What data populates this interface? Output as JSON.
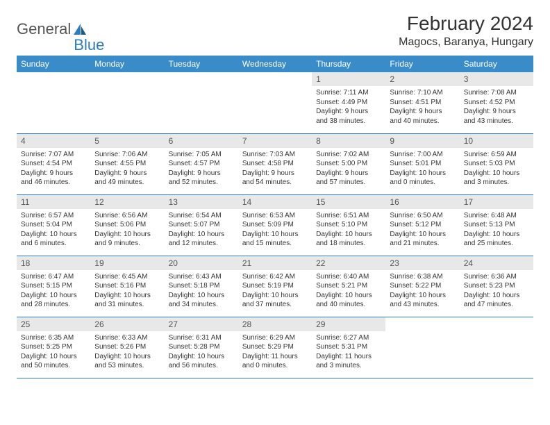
{
  "logo": {
    "word1": "General",
    "word2": "Blue"
  },
  "title": "February 2024",
  "location": "Magocs, Baranya, Hungary",
  "colors": {
    "header_bg": "#3a8cc9",
    "header_text": "#ffffff",
    "daynum_bg": "#e8e8e8",
    "border": "#2b7bbd",
    "text": "#333333",
    "logo_gray": "#555555",
    "logo_blue": "#2b7bbd"
  },
  "typography": {
    "title_fontsize": 28,
    "location_fontsize": 16,
    "header_fontsize": 12,
    "daynum_fontsize": 12,
    "body_fontsize": 10
  },
  "day_headers": [
    "Sunday",
    "Monday",
    "Tuesday",
    "Wednesday",
    "Thursday",
    "Friday",
    "Saturday"
  ],
  "weeks": [
    [
      {
        "n": "",
        "sr": "",
        "ss": "",
        "dl1": "",
        "dl2": ""
      },
      {
        "n": "",
        "sr": "",
        "ss": "",
        "dl1": "",
        "dl2": ""
      },
      {
        "n": "",
        "sr": "",
        "ss": "",
        "dl1": "",
        "dl2": ""
      },
      {
        "n": "",
        "sr": "",
        "ss": "",
        "dl1": "",
        "dl2": ""
      },
      {
        "n": "1",
        "sr": "Sunrise: 7:11 AM",
        "ss": "Sunset: 4:49 PM",
        "dl1": "Daylight: 9 hours",
        "dl2": "and 38 minutes."
      },
      {
        "n": "2",
        "sr": "Sunrise: 7:10 AM",
        "ss": "Sunset: 4:51 PM",
        "dl1": "Daylight: 9 hours",
        "dl2": "and 40 minutes."
      },
      {
        "n": "3",
        "sr": "Sunrise: 7:08 AM",
        "ss": "Sunset: 4:52 PM",
        "dl1": "Daylight: 9 hours",
        "dl2": "and 43 minutes."
      }
    ],
    [
      {
        "n": "4",
        "sr": "Sunrise: 7:07 AM",
        "ss": "Sunset: 4:54 PM",
        "dl1": "Daylight: 9 hours",
        "dl2": "and 46 minutes."
      },
      {
        "n": "5",
        "sr": "Sunrise: 7:06 AM",
        "ss": "Sunset: 4:55 PM",
        "dl1": "Daylight: 9 hours",
        "dl2": "and 49 minutes."
      },
      {
        "n": "6",
        "sr": "Sunrise: 7:05 AM",
        "ss": "Sunset: 4:57 PM",
        "dl1": "Daylight: 9 hours",
        "dl2": "and 52 minutes."
      },
      {
        "n": "7",
        "sr": "Sunrise: 7:03 AM",
        "ss": "Sunset: 4:58 PM",
        "dl1": "Daylight: 9 hours",
        "dl2": "and 54 minutes."
      },
      {
        "n": "8",
        "sr": "Sunrise: 7:02 AM",
        "ss": "Sunset: 5:00 PM",
        "dl1": "Daylight: 9 hours",
        "dl2": "and 57 minutes."
      },
      {
        "n": "9",
        "sr": "Sunrise: 7:00 AM",
        "ss": "Sunset: 5:01 PM",
        "dl1": "Daylight: 10 hours",
        "dl2": "and 0 minutes."
      },
      {
        "n": "10",
        "sr": "Sunrise: 6:59 AM",
        "ss": "Sunset: 5:03 PM",
        "dl1": "Daylight: 10 hours",
        "dl2": "and 3 minutes."
      }
    ],
    [
      {
        "n": "11",
        "sr": "Sunrise: 6:57 AM",
        "ss": "Sunset: 5:04 PM",
        "dl1": "Daylight: 10 hours",
        "dl2": "and 6 minutes."
      },
      {
        "n": "12",
        "sr": "Sunrise: 6:56 AM",
        "ss": "Sunset: 5:06 PM",
        "dl1": "Daylight: 10 hours",
        "dl2": "and 9 minutes."
      },
      {
        "n": "13",
        "sr": "Sunrise: 6:54 AM",
        "ss": "Sunset: 5:07 PM",
        "dl1": "Daylight: 10 hours",
        "dl2": "and 12 minutes."
      },
      {
        "n": "14",
        "sr": "Sunrise: 6:53 AM",
        "ss": "Sunset: 5:09 PM",
        "dl1": "Daylight: 10 hours",
        "dl2": "and 15 minutes."
      },
      {
        "n": "15",
        "sr": "Sunrise: 6:51 AM",
        "ss": "Sunset: 5:10 PM",
        "dl1": "Daylight: 10 hours",
        "dl2": "and 18 minutes."
      },
      {
        "n": "16",
        "sr": "Sunrise: 6:50 AM",
        "ss": "Sunset: 5:12 PM",
        "dl1": "Daylight: 10 hours",
        "dl2": "and 21 minutes."
      },
      {
        "n": "17",
        "sr": "Sunrise: 6:48 AM",
        "ss": "Sunset: 5:13 PM",
        "dl1": "Daylight: 10 hours",
        "dl2": "and 25 minutes."
      }
    ],
    [
      {
        "n": "18",
        "sr": "Sunrise: 6:47 AM",
        "ss": "Sunset: 5:15 PM",
        "dl1": "Daylight: 10 hours",
        "dl2": "and 28 minutes."
      },
      {
        "n": "19",
        "sr": "Sunrise: 6:45 AM",
        "ss": "Sunset: 5:16 PM",
        "dl1": "Daylight: 10 hours",
        "dl2": "and 31 minutes."
      },
      {
        "n": "20",
        "sr": "Sunrise: 6:43 AM",
        "ss": "Sunset: 5:18 PM",
        "dl1": "Daylight: 10 hours",
        "dl2": "and 34 minutes."
      },
      {
        "n": "21",
        "sr": "Sunrise: 6:42 AM",
        "ss": "Sunset: 5:19 PM",
        "dl1": "Daylight: 10 hours",
        "dl2": "and 37 minutes."
      },
      {
        "n": "22",
        "sr": "Sunrise: 6:40 AM",
        "ss": "Sunset: 5:21 PM",
        "dl1": "Daylight: 10 hours",
        "dl2": "and 40 minutes."
      },
      {
        "n": "23",
        "sr": "Sunrise: 6:38 AM",
        "ss": "Sunset: 5:22 PM",
        "dl1": "Daylight: 10 hours",
        "dl2": "and 43 minutes."
      },
      {
        "n": "24",
        "sr": "Sunrise: 6:36 AM",
        "ss": "Sunset: 5:23 PM",
        "dl1": "Daylight: 10 hours",
        "dl2": "and 47 minutes."
      }
    ],
    [
      {
        "n": "25",
        "sr": "Sunrise: 6:35 AM",
        "ss": "Sunset: 5:25 PM",
        "dl1": "Daylight: 10 hours",
        "dl2": "and 50 minutes."
      },
      {
        "n": "26",
        "sr": "Sunrise: 6:33 AM",
        "ss": "Sunset: 5:26 PM",
        "dl1": "Daylight: 10 hours",
        "dl2": "and 53 minutes."
      },
      {
        "n": "27",
        "sr": "Sunrise: 6:31 AM",
        "ss": "Sunset: 5:28 PM",
        "dl1": "Daylight: 10 hours",
        "dl2": "and 56 minutes."
      },
      {
        "n": "28",
        "sr": "Sunrise: 6:29 AM",
        "ss": "Sunset: 5:29 PM",
        "dl1": "Daylight: 11 hours",
        "dl2": "and 0 minutes."
      },
      {
        "n": "29",
        "sr": "Sunrise: 6:27 AM",
        "ss": "Sunset: 5:31 PM",
        "dl1": "Daylight: 11 hours",
        "dl2": "and 3 minutes."
      },
      {
        "n": "",
        "sr": "",
        "ss": "",
        "dl1": "",
        "dl2": ""
      },
      {
        "n": "",
        "sr": "",
        "ss": "",
        "dl1": "",
        "dl2": ""
      }
    ]
  ]
}
